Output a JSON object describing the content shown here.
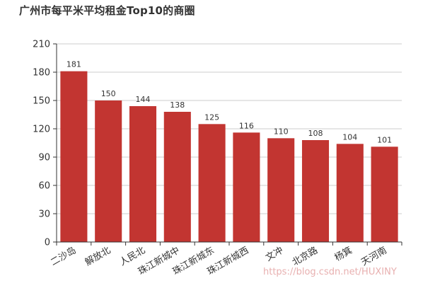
{
  "chart_data": {
    "type": "bar",
    "title": "广州市每平米平均租金Top10的商圈",
    "categories": [
      "二沙岛",
      "解放北",
      "人民北",
      "珠江新城中",
      "珠江新城东",
      "珠江新城西",
      "文冲",
      "北京路",
      "杨箕",
      "天河南"
    ],
    "values": [
      181,
      150,
      144,
      138,
      125,
      116,
      110,
      108,
      104,
      101
    ],
    "ylim": [
      0,
      210
    ],
    "yticks": [
      0,
      30,
      60,
      90,
      120,
      150,
      180,
      210
    ],
    "xlabel": "",
    "ylabel": "",
    "grid": true,
    "bar_color": "#c23531"
  },
  "watermark": "https://blog.csdn.net/HUXINY"
}
